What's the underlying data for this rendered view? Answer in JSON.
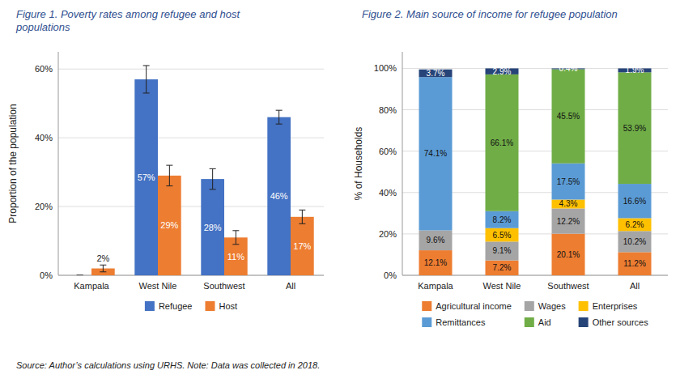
{
  "chart_data": [
    {
      "type": "bar",
      "title": "Figure 1. Poverty rates among refugee and host\npopulations",
      "categories": [
        "Kampala",
        "West Nile",
        "Southwest",
        "All"
      ],
      "series": [
        {
          "name": "Refugee",
          "color": "#4472C4",
          "values": [
            0,
            57,
            28,
            46
          ],
          "errors": [
            0,
            4,
            3,
            2
          ],
          "value_labels": [
            null,
            "57%",
            "28%",
            "46%"
          ]
        },
        {
          "name": "Host",
          "color": "#ED7D31",
          "values": [
            2,
            29,
            11,
            17
          ],
          "errors": [
            1,
            3,
            2,
            2
          ],
          "value_labels": [
            "2%",
            "29%",
            "11%",
            "17%"
          ]
        }
      ],
      "y_label": "Proportion of the population",
      "ylim": [
        0,
        65
      ],
      "yticks": [
        {
          "value": 0,
          "label": "0%"
        },
        {
          "value": 20,
          "label": "20%"
        },
        {
          "value": 40,
          "label": "40%"
        },
        {
          "value": 60,
          "label": "60%"
        }
      ],
      "grid": true,
      "legend": "bottom",
      "data_labels": true
    },
    {
      "type": "bar",
      "stacked": true,
      "title": "Figure 2. Main source of income for refugee population",
      "categories": [
        "Kampala",
        "West Nile",
        "Southwest",
        "All"
      ],
      "series": [
        {
          "name": "Agricultural income",
          "color": "#ED7D31",
          "values": [
            12.1,
            7.2,
            20.1,
            11.2
          ],
          "value_labels": [
            "12.1%",
            "7.2%",
            "20.1%",
            "11.2%"
          ]
        },
        {
          "name": "Wages",
          "color": "#A5A5A5",
          "values": [
            9.6,
            9.1,
            12.2,
            10.2
          ],
          "value_labels": [
            "9.6%",
            "9.1%",
            "12.2%",
            "10.2%"
          ]
        },
        {
          "name": "Enterprises",
          "color": "#FFC000",
          "values": [
            0,
            6.5,
            4.3,
            6.2
          ],
          "value_labels": [
            null,
            "6.5%",
            "4.3%",
            "6.2%"
          ]
        },
        {
          "name": "Remittances",
          "color": "#5B9BD5",
          "values": [
            74.1,
            8.2,
            17.5,
            16.6
          ],
          "value_labels": [
            "74.1%",
            "8.2%",
            "17.5%",
            "16.6%"
          ]
        },
        {
          "name": "Aid",
          "color": "#70AD47",
          "values": [
            0,
            66.1,
            45.5,
            53.9
          ],
          "value_labels": [
            null,
            "66.1%",
            "45.5%",
            "53.9%"
          ]
        },
        {
          "name": "Other sources",
          "color": "#264478",
          "values": [
            3.7,
            2.9,
            0.4,
            1.9
          ],
          "value_labels": [
            "3.7%",
            "2.9%",
            "0.4%",
            "1.9%"
          ]
        }
      ],
      "y_label": "% of Households",
      "ylim": [
        0,
        108
      ],
      "yticks": [
        {
          "value": 0,
          "label": "0%"
        },
        {
          "value": 20,
          "label": "20%"
        },
        {
          "value": 40,
          "label": "40%"
        },
        {
          "value": 60,
          "label": "60%"
        },
        {
          "value": 80,
          "label": "80%"
        },
        {
          "value": 100,
          "label": "100%"
        }
      ],
      "grid": true,
      "legend": "bottom",
      "data_labels": true,
      "source": "Source: Author’s calculations using URHS. Note: Data was collected in 2018."
    }
  ]
}
